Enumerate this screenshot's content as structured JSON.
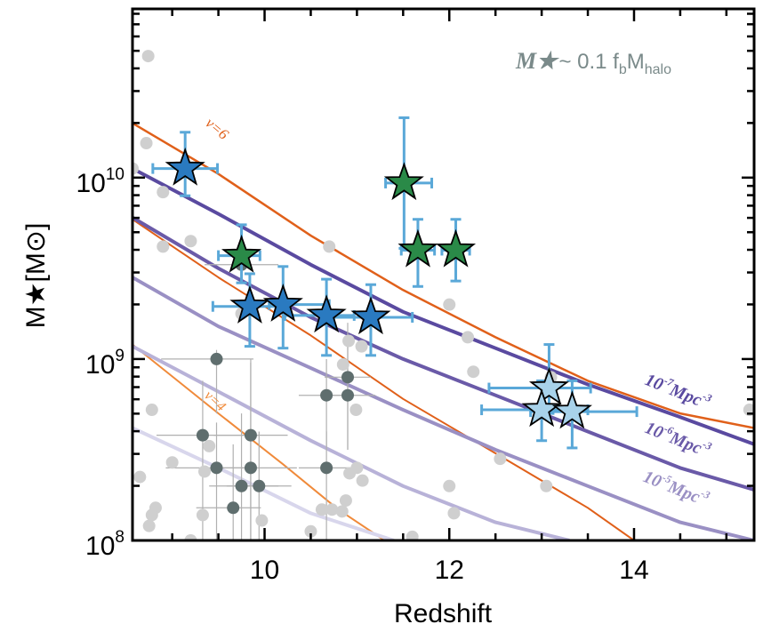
{
  "chart_data": {
    "type": "scatter",
    "title": "",
    "xlabel": "Redshift",
    "ylabel": "M★[M⊙]",
    "xlim": [
      8.57,
      15.3
    ],
    "ylim_log10": [
      8.0,
      10.93
    ],
    "yscale": "log",
    "grid": false,
    "x_ticks": [
      {
        "value": 10,
        "label": "10"
      },
      {
        "value": 12,
        "label": "12"
      },
      {
        "value": 14,
        "label": "14"
      }
    ],
    "y_ticks": [
      {
        "log10": 8,
        "base": "10",
        "exp": "8"
      },
      {
        "log10": 9,
        "base": "10",
        "exp": "9"
      },
      {
        "log10": 10,
        "base": "10",
        "exp": "10"
      }
    ],
    "annotation_main": {
      "symbol": "M★",
      "text": "~ 0.1 f",
      "sub1": "b",
      "text2": "M",
      "sub2": "halo",
      "color": "#7a8a8a"
    },
    "colors": {
      "nu6": "#e0601a",
      "nu4": "#f08a3a",
      "density_1e7": "#5a4aa0",
      "density_1e6": "#6a5aa8",
      "density_1e5": "#9a90c4",
      "density_1e4": "#b8b2d8",
      "density_1e3": "#d8d6ec",
      "errorbar": "#5aa8d8",
      "star_blue": "#2a7ac0",
      "star_green": "#2a8a48",
      "star_light": "#a8d2ea",
      "dot_dark": "#5f6e6e",
      "dot_light": "#cfcfcf",
      "dark_err": "#b0b0b0"
    },
    "curves": [
      {
        "name": "nu=6",
        "label": "ν=6",
        "color_key": "nu6",
        "width": 2.5,
        "x": [
          8.57,
          9.5,
          10.5,
          11.5,
          12.5,
          13.5,
          14.5,
          15.3
        ],
        "log10y": [
          10.3,
          10.02,
          9.68,
          9.38,
          9.12,
          8.88,
          8.7,
          8.62
        ]
      },
      {
        "name": "nu=6-lower",
        "label": "",
        "color_key": "nu6",
        "width": 2.0,
        "x": [
          8.57,
          9.5,
          10.5,
          11.5,
          12.5,
          13.5,
          14.0
        ],
        "log10y": [
          9.77,
          9.45,
          9.13,
          8.78,
          8.48,
          8.18,
          8.0
        ]
      },
      {
        "name": "nu=4",
        "label": "ν=4",
        "color_key": "nu4",
        "width": 2.0,
        "x": [
          8.57,
          9.5,
          10.2,
          10.8,
          11.3
        ],
        "log10y": [
          9.08,
          8.7,
          8.42,
          8.17,
          8.0
        ]
      },
      {
        "name": "1e-7 Mpc^-3",
        "label": "10",
        "label_exp": "-7",
        "label_unit": "Mpc",
        "label_unit_exp": "-3",
        "color_key": "density_1e7",
        "width": 4.0,
        "x": [
          8.57,
          9.5,
          10.5,
          11.5,
          12.5,
          13.5,
          14.5,
          15.3
        ],
        "log10y": [
          10.05,
          9.8,
          9.52,
          9.26,
          9.06,
          8.86,
          8.68,
          8.53
        ]
      },
      {
        "name": "1e-6 Mpc^-3",
        "label": "10",
        "label_exp": "-6",
        "label_unit": "Mpc",
        "label_unit_exp": "-3",
        "color_key": "density_1e6",
        "width": 4.0,
        "x": [
          8.57,
          9.5,
          10.5,
          11.5,
          12.5,
          13.5,
          14.5,
          15.3
        ],
        "log10y": [
          9.78,
          9.5,
          9.23,
          9.0,
          8.8,
          8.6,
          8.4,
          8.28
        ]
      },
      {
        "name": "1e-5 Mpc^-3",
        "label": "10",
        "label_exp": "-5",
        "label_unit": "Mpc",
        "label_unit_exp": "-3",
        "color_key": "density_1e5",
        "width": 4.0,
        "x": [
          8.57,
          9.5,
          10.5,
          11.5,
          12.5,
          13.5,
          14.5,
          15.3
        ],
        "log10y": [
          9.45,
          9.18,
          8.95,
          8.72,
          8.5,
          8.3,
          8.1,
          8.0
        ]
      },
      {
        "name": "1e-4 Mpc^-3",
        "label": "",
        "color_key": "density_1e4",
        "width": 4.0,
        "x": [
          8.57,
          9.5,
          10.5,
          11.5,
          12.5,
          13.3
        ],
        "log10y": [
          9.07,
          8.82,
          8.55,
          8.3,
          8.1,
          8.0
        ]
      },
      {
        "name": "1e-3 Mpc^-3",
        "label": "",
        "color_key": "density_1e3",
        "width": 4.0,
        "x": [
          8.57,
          9.5,
          10.5,
          11.4
        ],
        "log10y": [
          8.62,
          8.4,
          8.15,
          8.0
        ]
      }
    ],
    "series": [
      {
        "name": "blue-stars",
        "marker": "star",
        "color_key": "star_blue",
        "points": [
          {
            "x": 9.14,
            "log10y": 10.05,
            "xerr": [
              0.35,
              0.35
            ],
            "log10yerr": [
              0.15,
              0.2
            ]
          },
          {
            "x": 9.84,
            "log10y": 9.29,
            "xerr": [
              0.4,
              0.3
            ],
            "log10yerr": [
              0.22,
              0.18
            ]
          },
          {
            "x": 10.2,
            "log10y": 9.3,
            "xerr": [
              0.15,
              0.5
            ],
            "log10yerr": [
              0.24,
              0.21
            ]
          },
          {
            "x": 10.67,
            "log10y": 9.24,
            "xerr": [
              0.45,
              0.3
            ],
            "log10yerr": [
              0.22,
              0.2
            ]
          },
          {
            "x": 11.15,
            "log10y": 9.23,
            "xerr": [
              0.45,
              0.45
            ],
            "log10yerr": [
              0.21,
              0.18
            ]
          }
        ]
      },
      {
        "name": "green-stars",
        "marker": "star",
        "color_key": "star_green",
        "points": [
          {
            "x": 9.75,
            "log10y": 9.57,
            "xerr": [
              0.25,
              0.2
            ],
            "log10yerr": [
              0.15,
              0.17
            ]
          },
          {
            "x": 11.51,
            "log10y": 9.97,
            "xerr": [
              0.2,
              0.3
            ],
            "log10yerr": [
              0.36,
              0.36
            ]
          },
          {
            "x": 11.66,
            "log10y": 9.6,
            "xerr": [
              0.18,
              0.18
            ],
            "log10yerr": [
              0.2,
              0.17
            ]
          },
          {
            "x": 12.07,
            "log10y": 9.6,
            "xerr": [
              0.15,
              0.15
            ],
            "log10yerr": [
              0.17,
              0.17
            ]
          }
        ]
      },
      {
        "name": "light-blue-stars",
        "marker": "star",
        "color_key": "star_light",
        "points": [
          {
            "x": 13.08,
            "log10y": 8.84,
            "xerr": [
              0.65,
              0.45
            ],
            "log10yerr": [
              0.14,
              0.24
            ]
          },
          {
            "x": 13.0,
            "log10y": 8.72,
            "xerr": [
              0.65,
              0.5
            ],
            "log10yerr": [
              0.17,
              0.16
            ]
          },
          {
            "x": 13.33,
            "log10y": 8.71,
            "xerr": [
              0.45,
              0.7
            ],
            "log10yerr": [
              0.2,
              0.17
            ]
          }
        ]
      },
      {
        "name": "dark-dots",
        "marker": "circle",
        "color_key": "dot_dark",
        "points": [
          {
            "x": 9.48,
            "log10y": 9.0,
            "xerr": [
              0.6,
              0.4
            ],
            "log10yerr": [
              0.3,
              0.05
            ]
          },
          {
            "x": 9.75,
            "log10y": 9.52,
            "xerr": [
              0.4,
              0.4
            ],
            "log10yerr": [
              0.05,
              0.1
            ]
          },
          {
            "x": 9.33,
            "log10y": 8.58,
            "xerr": [
              0.5,
              0.6
            ],
            "log10yerr": [
              0.6,
              0.3
            ]
          },
          {
            "x": 9.48,
            "log10y": 8.4,
            "xerr": [
              0.55,
              0.4
            ],
            "log10yerr": [
              0.6,
              0.25
            ]
          },
          {
            "x": 9.85,
            "log10y": 8.58,
            "xerr": [
              0.4,
              0.4
            ],
            "log10yerr": [
              0.6,
              0.4
            ]
          },
          {
            "x": 9.85,
            "log10y": 8.4,
            "xerr": [
              0.4,
              0.5
            ],
            "log10yerr": [
              0.6,
              0.6
            ]
          },
          {
            "x": 9.75,
            "log10y": 8.3,
            "xerr": [
              0.35,
              0.4
            ],
            "log10yerr": [
              0.45,
              0.4
            ]
          },
          {
            "x": 9.94,
            "log10y": 8.3,
            "xerr": [
              0.35,
              0.35
            ],
            "log10yerr": [
              0.4,
              0.3
            ]
          },
          {
            "x": 9.66,
            "log10y": 8.18,
            "xerr": [
              0.4,
              0.3
            ],
            "log10yerr": [
              0.4,
              0.35
            ]
          },
          {
            "x": 10.67,
            "log10y": 8.8,
            "xerr": [
              0.3,
              0.3
            ],
            "log10yerr": [
              0.3,
              0.2
            ]
          },
          {
            "x": 10.9,
            "log10y": 8.8,
            "xerr": [
              0.3,
              0.3
            ],
            "log10yerr": [
              0.3,
              0.3
            ]
          },
          {
            "x": 10.9,
            "log10y": 8.9,
            "xerr": [
              0.25,
              0.25
            ],
            "log10yerr": [
              0.4,
              0.3
            ]
          },
          {
            "x": 10.67,
            "log10y": 8.4,
            "xerr": [
              0.3,
              0.3
            ],
            "log10yerr": [
              0.4,
              0.2
            ]
          }
        ]
      },
      {
        "name": "light-dots",
        "marker": "circle",
        "color_key": "dot_light",
        "points": [
          {
            "x": 8.74,
            "log10y": 10.67
          },
          {
            "x": 8.72,
            "log10y": 10.19
          },
          {
            "x": 8.57,
            "log10y": 10.05
          },
          {
            "x": 8.9,
            "log10y": 9.92
          },
          {
            "x": 9.2,
            "log10y": 9.65
          },
          {
            "x": 8.9,
            "log10y": 9.62
          },
          {
            "x": 10.7,
            "log10y": 9.62
          },
          {
            "x": 12.0,
            "log10y": 9.3
          },
          {
            "x": 9.75,
            "log10y": 9.25
          },
          {
            "x": 10.91,
            "log10y": 9.1
          },
          {
            "x": 11.05,
            "log10y": 9.07
          },
          {
            "x": 12.2,
            "log10y": 9.12
          },
          {
            "x": 12.26,
            "log10y": 8.93
          },
          {
            "x": 10.85,
            "log10y": 8.97
          },
          {
            "x": 10.99,
            "log10y": 8.72
          },
          {
            "x": 8.78,
            "log10y": 8.72
          },
          {
            "x": 9.4,
            "log10y": 8.52
          },
          {
            "x": 9.0,
            "log10y": 8.43
          },
          {
            "x": 9.35,
            "log10y": 8.38
          },
          {
            "x": 8.65,
            "log10y": 8.35
          },
          {
            "x": 12.55,
            "log10y": 8.45
          },
          {
            "x": 11.0,
            "log10y": 8.4
          },
          {
            "x": 10.92,
            "log10y": 8.37
          },
          {
            "x": 11.06,
            "log10y": 8.33
          },
          {
            "x": 12.0,
            "log10y": 8.3
          },
          {
            "x": 13.05,
            "log10y": 8.3
          },
          {
            "x": 8.82,
            "log10y": 8.18
          },
          {
            "x": 8.78,
            "log10y": 8.14
          },
          {
            "x": 8.75,
            "log10y": 8.08
          },
          {
            "x": 9.33,
            "log10y": 8.14
          },
          {
            "x": 9.97,
            "log10y": 8.11
          },
          {
            "x": 10.62,
            "log10y": 8.17
          },
          {
            "x": 10.73,
            "log10y": 8.17
          },
          {
            "x": 10.84,
            "log10y": 8.16
          },
          {
            "x": 10.88,
            "log10y": 8.22
          },
          {
            "x": 10.5,
            "log10y": 8.05
          },
          {
            "x": 11.6,
            "log10y": 8.02
          },
          {
            "x": 12.05,
            "log10y": 8.15
          },
          {
            "x": 13.1,
            "log10y": 8.9
          },
          {
            "x": 15.25,
            "log10y": 8.72
          },
          {
            "x": 9.2,
            "log10y": 8.0
          }
        ]
      }
    ]
  }
}
